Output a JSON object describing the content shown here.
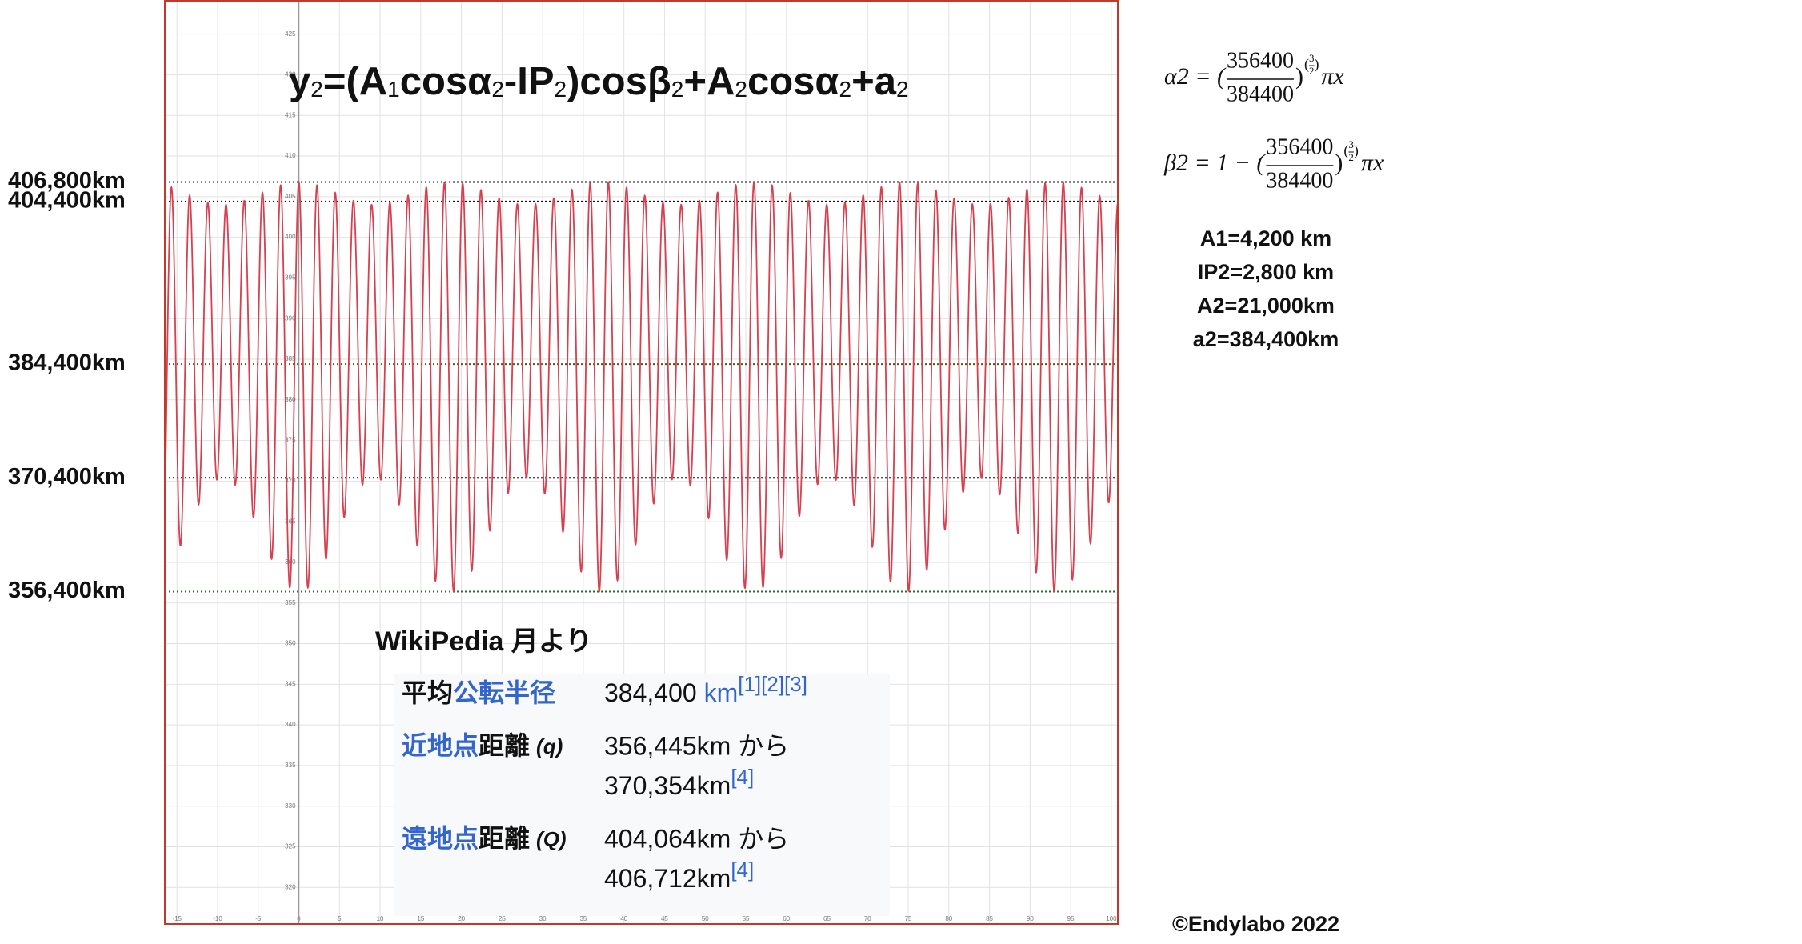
{
  "chart_data": {
    "type": "function",
    "title_parts": [
      [
        "y",
        "2"
      ],
      [
        "=(A",
        "1"
      ],
      [
        "cosα",
        "2"
      ],
      [
        "-IP",
        "2"
      ],
      [
        ")cosβ",
        "2"
      ],
      [
        "+A",
        "2"
      ],
      [
        "cosα",
        "2"
      ],
      [
        "+a",
        "2"
      ]
    ],
    "xlim": [
      -16.5,
      100.8
    ],
    "ylim": [
      315500,
      429100
    ],
    "xticks": [
      -15,
      -10,
      -5,
      0,
      5,
      10,
      15,
      20,
      25,
      30,
      35,
      40,
      45,
      50,
      55,
      60,
      65,
      70,
      75,
      80,
      85,
      90,
      95,
      100
    ],
    "yticks": [
      {
        "value": 320000,
        "label": "320"
      },
      {
        "value": 325000,
        "label": "325"
      },
      {
        "value": 330000,
        "label": "330"
      },
      {
        "value": 335000,
        "label": "335"
      },
      {
        "value": 340000,
        "label": "340"
      },
      {
        "value": 345000,
        "label": "345"
      },
      {
        "value": 350000,
        "label": "350"
      },
      {
        "value": 355000,
        "label": "355"
      },
      {
        "value": 360000,
        "label": "360"
      },
      {
        "value": 365000,
        "label": "365"
      },
      {
        "value": 370000,
        "label": "370"
      },
      {
        "value": 375000,
        "label": "375"
      },
      {
        "value": 380000,
        "label": "380"
      },
      {
        "value": 385000,
        "label": "385"
      },
      {
        "value": 390000,
        "label": "390"
      },
      {
        "value": 395000,
        "label": "395"
      },
      {
        "value": 400000,
        "label": "400"
      },
      {
        "value": 405000,
        "label": "405"
      },
      {
        "value": 410000,
        "label": "410"
      },
      {
        "value": 415000,
        "label": "415"
      },
      {
        "value": 420000,
        "label": "420"
      },
      {
        "value": 425000,
        "label": "425"
      }
    ],
    "grid": true,
    "color": "#d6404f",
    "reference_lines": [
      {
        "value": 406800,
        "label": "406,800km",
        "color": "#111111"
      },
      {
        "value": 404400,
        "label": "404,400km",
        "color": "#111111"
      },
      {
        "value": 384400,
        "label": "384,400km",
        "color": "#4d5a1e"
      },
      {
        "value": 370400,
        "label": "370,400km",
        "color": "#111111"
      },
      {
        "value": 356400,
        "label": "356,400km",
        "color": "#2e6b2e"
      }
    ],
    "formulas": [
      {
        "lhs": "α2 = (",
        "num": 356400,
        "den": 384400,
        "close": ")",
        "exp_open": "(",
        "exp_num": 3,
        "exp_den": 2,
        "exp_close": ")",
        "tail": "πx"
      },
      {
        "lhs": "β2 = 1 − (",
        "num": 356400,
        "den": 384400,
        "close": ")",
        "exp_open": "(",
        "exp_num": 3,
        "exp_den": 2,
        "exp_close": ")",
        "tail": "πx"
      }
    ],
    "params": [
      {
        "label": "A1=4,200 km",
        "value": 4200
      },
      {
        "label": "IP2=2,800 km",
        "value": 2800
      },
      {
        "label": "A2=21,000km",
        "value": 21000
      },
      {
        "label": "a2=384,400km",
        "value": 384400
      }
    ]
  },
  "wiki": {
    "heading": "WikiPedia 月より",
    "rows": [
      {
        "label_plain": "平均",
        "label_link": "公転半径",
        "value": "384,400 ",
        "unit": "km",
        "refs": "[1][2][3]"
      },
      {
        "label_link": "近地点",
        "label_plain": "距離",
        "symbol": "(q)",
        "value_from": "356,445km から",
        "value_to": "370,354km",
        "refs": "[4]"
      },
      {
        "label_link": "遠地点",
        "label_plain": "距離",
        "symbol": "(Q)",
        "value_from": "404,064km から",
        "value_to": "406,712km",
        "refs": "[4]"
      }
    ]
  },
  "copyright": "©Endylabo 2022"
}
